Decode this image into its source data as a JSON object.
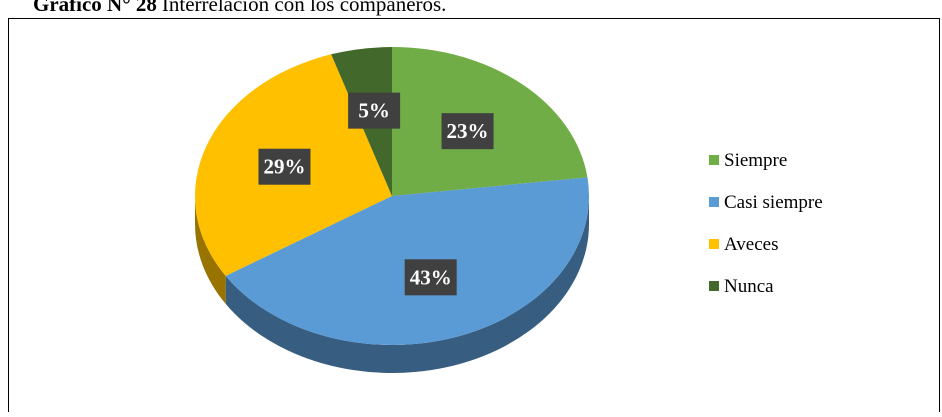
{
  "chart_data": {
    "type": "pie",
    "figure_label": "Gráfico N° 28",
    "title": "Interrelación con los compañeros.",
    "categories": [
      "Siempre",
      "Casi siempre",
      "Aveces",
      "Nunca"
    ],
    "values": [
      23,
      43,
      29,
      5
    ],
    "value_labels": [
      "23%",
      "43%",
      "29%",
      "5%"
    ],
    "colors": [
      "#70ad47",
      "#5b9bd5",
      "#ffc000",
      "#43682b"
    ],
    "legend": "right"
  }
}
